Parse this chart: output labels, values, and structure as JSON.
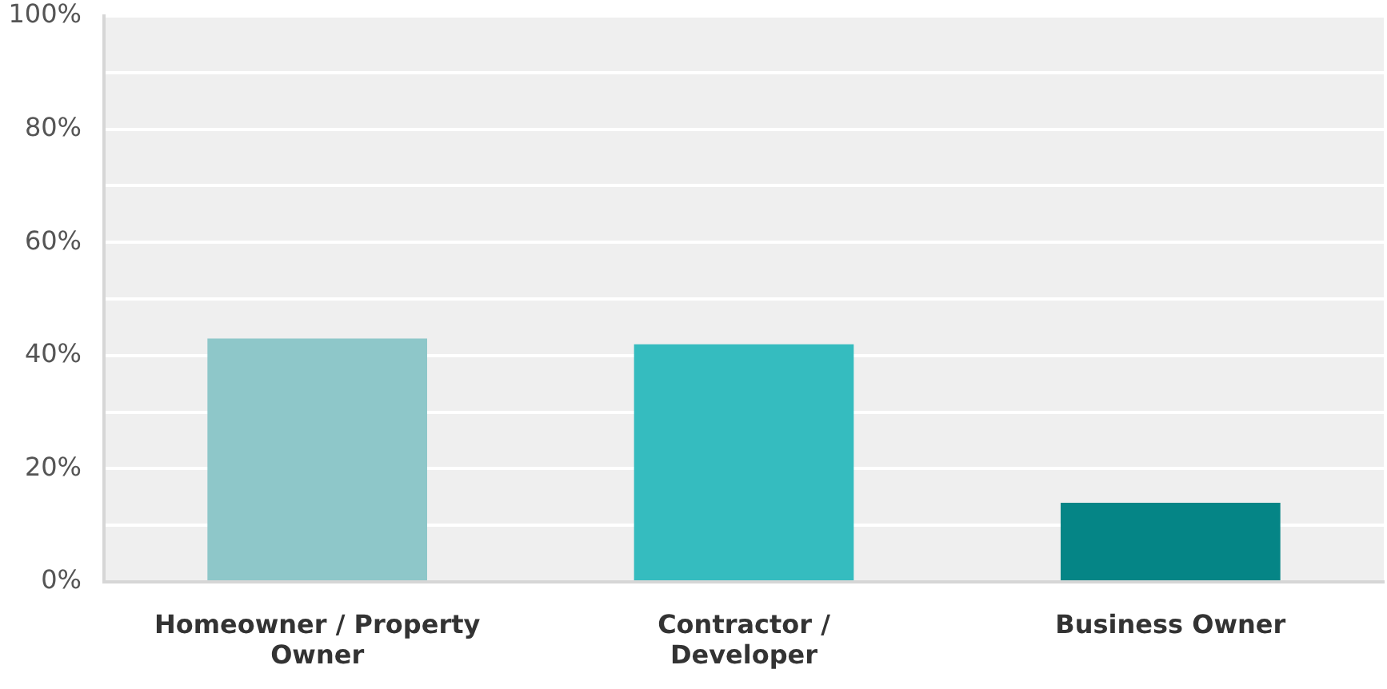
{
  "chart_data": {
    "type": "bar",
    "categories": [
      "Homeowner / Property Owner",
      "Contractor / Developer",
      "Business Owner"
    ],
    "values": [
      43,
      42,
      14
    ],
    "colors": [
      "#8ec7c9",
      "#35bcbf",
      "#058586"
    ],
    "ylim": [
      0,
      100
    ],
    "yticks": [
      {
        "value": 0,
        "label": "0%"
      },
      {
        "value": 10,
        "label": null
      },
      {
        "value": 20,
        "label": "20%"
      },
      {
        "value": 30,
        "label": null
      },
      {
        "value": 40,
        "label": "40%"
      },
      {
        "value": 50,
        "label": null
      },
      {
        "value": 60,
        "label": "60%"
      },
      {
        "value": 70,
        "label": null
      },
      {
        "value": 80,
        "label": "80%"
      },
      {
        "value": 90,
        "label": null
      },
      {
        "value": 100,
        "label": "100%"
      }
    ],
    "grid": "y"
  }
}
